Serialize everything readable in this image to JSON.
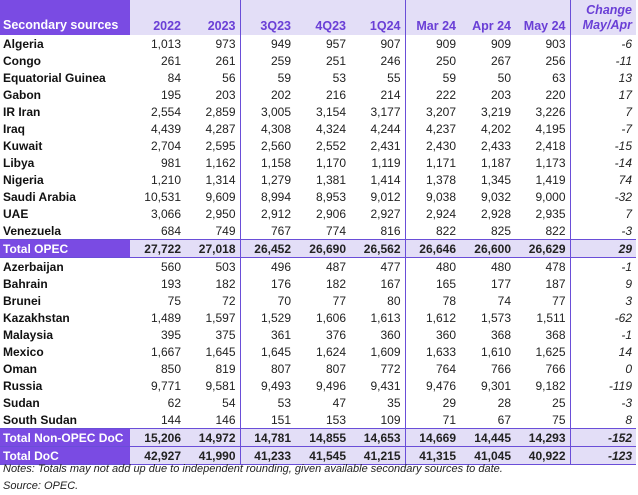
{
  "header": {
    "label": "Secondary sources",
    "columns": [
      "2022",
      "2023",
      "3Q23",
      "4Q23",
      "1Q24",
      "Mar 24",
      "Apr 24",
      "May 24"
    ],
    "change_line1": "Change",
    "change_line2": "May/Apr"
  },
  "rows": [
    {
      "name": "Algeria",
      "values": [
        "1,013",
        "973",
        "949",
        "957",
        "907",
        "909",
        "909",
        "903"
      ],
      "change": "-6"
    },
    {
      "name": "Congo",
      "values": [
        "261",
        "261",
        "259",
        "251",
        "246",
        "250",
        "267",
        "256"
      ],
      "change": "-11"
    },
    {
      "name": "Equatorial Guinea",
      "values": [
        "84",
        "56",
        "59",
        "53",
        "55",
        "59",
        "50",
        "63"
      ],
      "change": "13"
    },
    {
      "name": "Gabon",
      "values": [
        "195",
        "203",
        "202",
        "216",
        "214",
        "222",
        "203",
        "220"
      ],
      "change": "17"
    },
    {
      "name": "IR Iran",
      "values": [
        "2,554",
        "2,859",
        "3,005",
        "3,154",
        "3,177",
        "3,207",
        "3,219",
        "3,226"
      ],
      "change": "7"
    },
    {
      "name": "Iraq",
      "values": [
        "4,439",
        "4,287",
        "4,308",
        "4,324",
        "4,244",
        "4,237",
        "4,202",
        "4,195"
      ],
      "change": "-7"
    },
    {
      "name": "Kuwait",
      "values": [
        "2,704",
        "2,595",
        "2,560",
        "2,552",
        "2,431",
        "2,430",
        "2,433",
        "2,418"
      ],
      "change": "-15"
    },
    {
      "name": "Libya",
      "values": [
        "981",
        "1,162",
        "1,158",
        "1,170",
        "1,119",
        "1,171",
        "1,187",
        "1,173"
      ],
      "change": "-14"
    },
    {
      "name": "Nigeria",
      "values": [
        "1,210",
        "1,314",
        "1,279",
        "1,381",
        "1,414",
        "1,378",
        "1,345",
        "1,419"
      ],
      "change": "74"
    },
    {
      "name": "Saudi Arabia",
      "values": [
        "10,531",
        "9,609",
        "8,994",
        "8,953",
        "9,012",
        "9,038",
        "9,032",
        "9,000"
      ],
      "change": "-32"
    },
    {
      "name": "UAE",
      "values": [
        "3,066",
        "2,950",
        "2,912",
        "2,906",
        "2,927",
        "2,924",
        "2,928",
        "2,935"
      ],
      "change": "7"
    },
    {
      "name": "Venezuela",
      "values": [
        "684",
        "749",
        "767",
        "774",
        "816",
        "822",
        "825",
        "822"
      ],
      "change": "-3"
    },
    {
      "name": "Total  OPEC",
      "total": true,
      "values": [
        "27,722",
        "27,018",
        "26,452",
        "26,690",
        "26,562",
        "26,646",
        "26,600",
        "26,629"
      ],
      "change": "29"
    },
    {
      "name": "Azerbaijan",
      "values": [
        "560",
        "503",
        "496",
        "487",
        "477",
        "480",
        "480",
        "478"
      ],
      "change": "-1"
    },
    {
      "name": "Bahrain",
      "values": [
        "193",
        "182",
        "176",
        "182",
        "167",
        "165",
        "177",
        "187"
      ],
      "change": "9"
    },
    {
      "name": "Brunei",
      "values": [
        "75",
        "72",
        "70",
        "77",
        "80",
        "78",
        "74",
        "77"
      ],
      "change": "3"
    },
    {
      "name": "Kazakhstan",
      "values": [
        "1,489",
        "1,597",
        "1,529",
        "1,606",
        "1,613",
        "1,612",
        "1,573",
        "1,511"
      ],
      "change": "-62"
    },
    {
      "name": "Malaysia",
      "values": [
        "395",
        "375",
        "361",
        "376",
        "360",
        "360",
        "368",
        "368"
      ],
      "change": "-1"
    },
    {
      "name": "Mexico",
      "values": [
        "1,667",
        "1,645",
        "1,645",
        "1,624",
        "1,609",
        "1,633",
        "1,610",
        "1,625"
      ],
      "change": "14"
    },
    {
      "name": "Oman",
      "values": [
        "850",
        "819",
        "807",
        "807",
        "772",
        "764",
        "766",
        "766"
      ],
      "change": "0"
    },
    {
      "name": "Russia",
      "values": [
        "9,771",
        "9,581",
        "9,493",
        "9,496",
        "9,431",
        "9,476",
        "9,301",
        "9,182"
      ],
      "change": "-119"
    },
    {
      "name": "Sudan",
      "values": [
        "62",
        "54",
        "53",
        "47",
        "35",
        "29",
        "28",
        "25"
      ],
      "change": "-3"
    },
    {
      "name": "South Sudan",
      "values": [
        "144",
        "146",
        "151",
        "153",
        "109",
        "71",
        "67",
        "75"
      ],
      "change": "8"
    },
    {
      "name": "Total Non-OPEC DoC",
      "total": true,
      "values": [
        "15,206",
        "14,972",
        "14,781",
        "14,855",
        "14,653",
        "14,669",
        "14,445",
        "14,293"
      ],
      "change": "-152"
    },
    {
      "name": "Total DoC",
      "total": true,
      "values": [
        "42,927",
        "41,990",
        "41,233",
        "41,545",
        "41,215",
        "41,315",
        "41,045",
        "40,922"
      ],
      "change": "-123"
    }
  ],
  "notes": "Notes: Totals may not add up due to independent rounding, given available secondary sources to date.",
  "source": "Source: OPEC.",
  "colors": {
    "accent": "#7a4be3",
    "header_bg": "#e3def7",
    "header_text": "#6a3fd6"
  }
}
